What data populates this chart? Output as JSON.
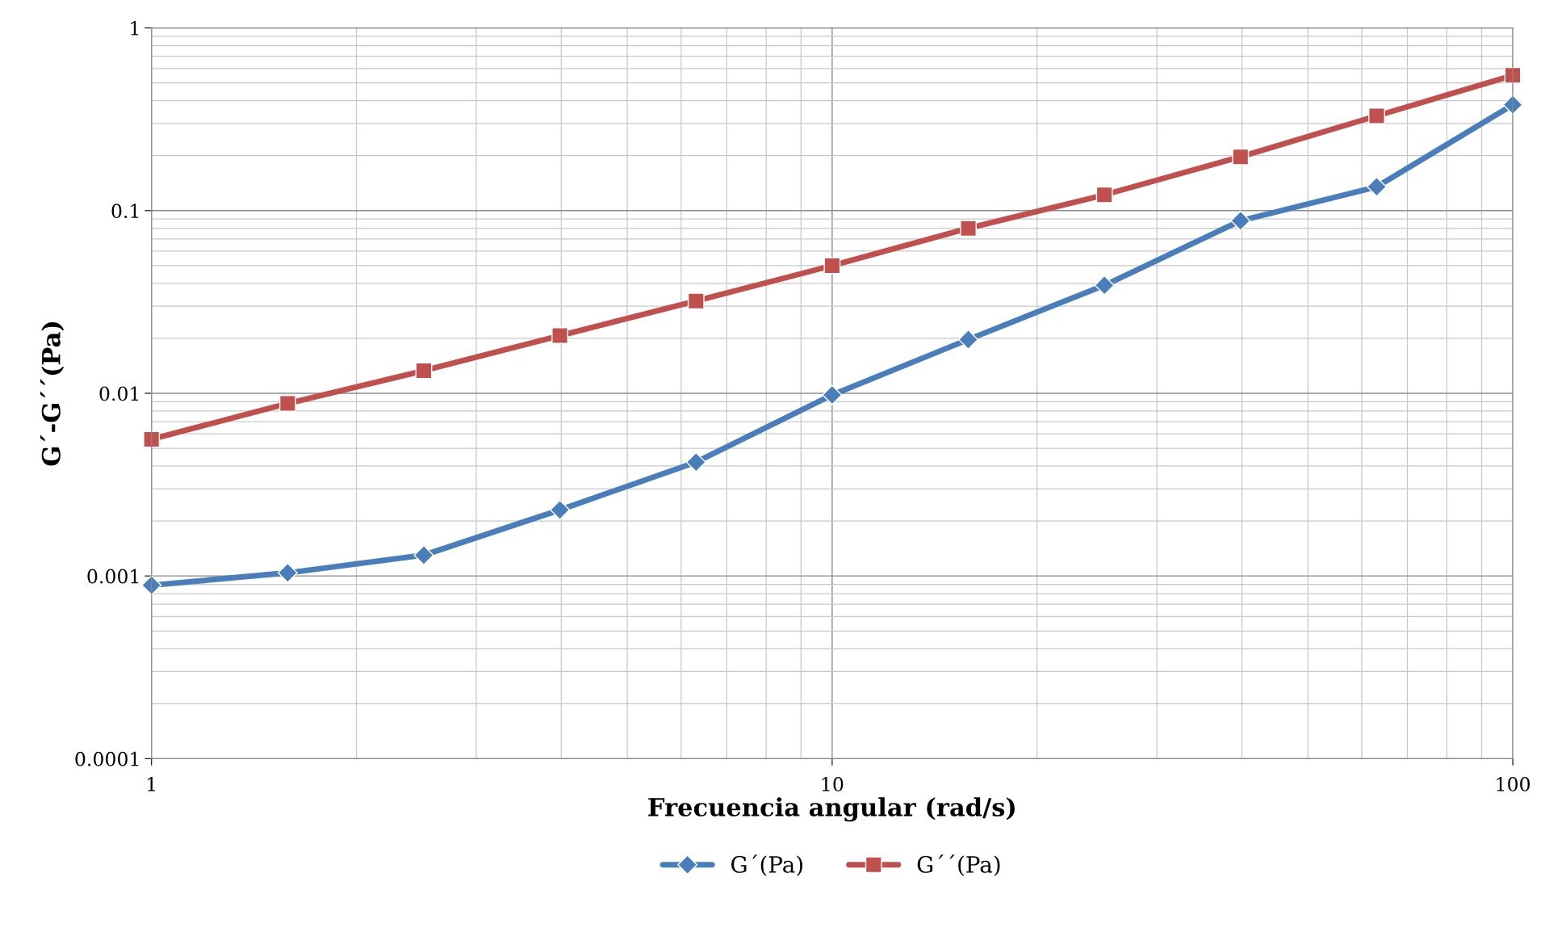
{
  "chart_data": {
    "type": "line",
    "xlabel": "Frecuencia angular (rad/s)",
    "ylabel": "G´-G´´(Pa)",
    "log": "xy",
    "x": [
      1,
      1.585,
      2.512,
      3.981,
      6.31,
      10,
      15.85,
      25.12,
      39.81,
      63.1,
      100
    ],
    "xlim": [
      1,
      100
    ],
    "xticks": [
      1,
      10,
      100
    ],
    "ylim": [
      0.0001,
      1
    ],
    "yticks": [
      0.0001,
      0.001,
      0.01,
      0.1,
      1
    ],
    "grid": true,
    "legend": "bottom",
    "line_style": "solid",
    "series": [
      {
        "name": "G´(Pa)",
        "color": "#4a7ebb",
        "marker": "diamond",
        "values": [
          0.00089,
          0.00104,
          0.0013,
          0.0023,
          0.0042,
          0.0098,
          0.0197,
          0.039,
          0.088,
          0.135,
          0.38
        ]
      },
      {
        "name": "G´´(Pa)",
        "color": "#c0504d",
        "marker": "square",
        "values": [
          0.0056,
          0.0088,
          0.0133,
          0.0207,
          0.032,
          0.05,
          0.08,
          0.122,
          0.197,
          0.33,
          0.55
        ]
      }
    ]
  }
}
